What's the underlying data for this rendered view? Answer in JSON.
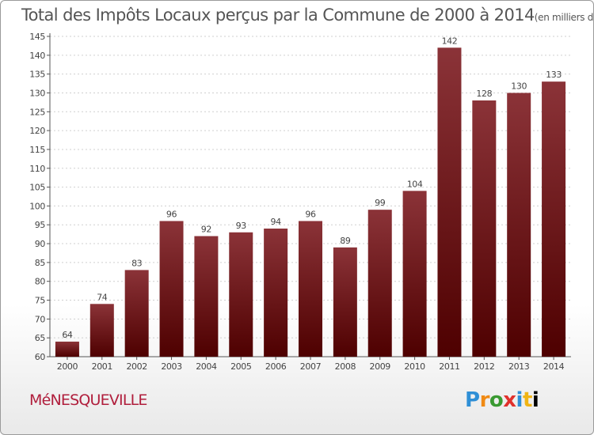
{
  "header": {
    "title": "Total des Impôts Locaux perçus par la Commune de 2000 à 2014",
    "unit": "(en milliers d'€)"
  },
  "footer": {
    "commune": "MéNESQUEVILLE",
    "brand_letters": [
      "P",
      "r",
      "o",
      "x",
      "i",
      "t",
      "i"
    ]
  },
  "colors": {
    "bar_top": "#8b3338",
    "bar_bottom": "#4e0000",
    "axis": "#555555",
    "grid": "#cfcfcf"
  },
  "chart_data": {
    "type": "bar",
    "title": "Total des Impôts Locaux perçus par la Commune de 2000 à 2014",
    "subtitle": "(en milliers d'€)",
    "xlabel": "",
    "ylabel": "",
    "categories": [
      "2000",
      "2001",
      "2002",
      "2003",
      "2004",
      "2005",
      "2006",
      "2007",
      "2008",
      "2009",
      "2010",
      "2011",
      "2012",
      "2013",
      "2014"
    ],
    "values": [
      64,
      74,
      83,
      96,
      92,
      93,
      94,
      96,
      89,
      99,
      104,
      142,
      128,
      130,
      133
    ],
    "ylim": [
      60,
      145
    ],
    "yticks": [
      60,
      65,
      70,
      75,
      80,
      85,
      90,
      95,
      100,
      105,
      110,
      115,
      120,
      125,
      130,
      135,
      140,
      145
    ],
    "grid": true
  }
}
